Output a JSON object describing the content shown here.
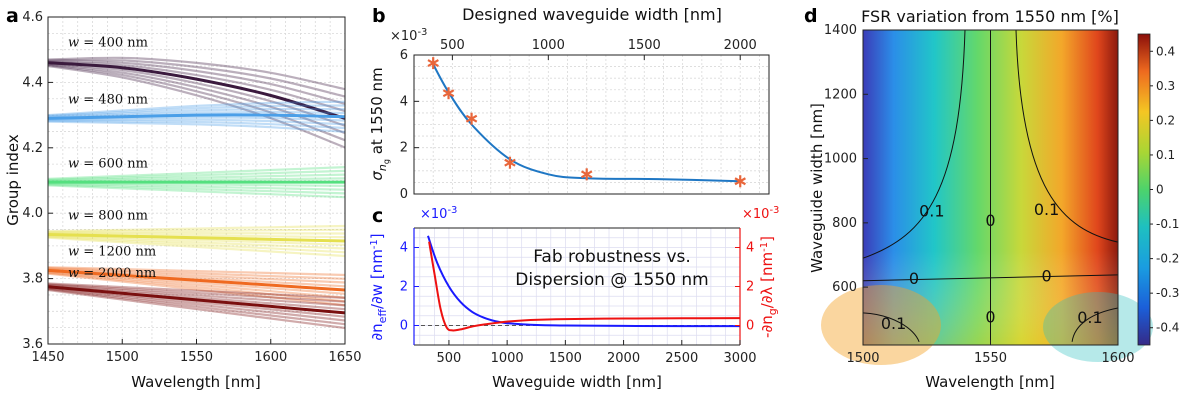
{
  "chart_data": [
    {
      "panel": "a",
      "type": "line",
      "title": "",
      "xlabel": "Wavelength [nm]",
      "ylabel": "Group index",
      "xlim": [
        1450,
        1650
      ],
      "ylim": [
        3.6,
        4.6
      ],
      "xticks": [
        "1450",
        "1500",
        "1550",
        "1600",
        "1650"
      ],
      "yticks": [
        "3.6",
        "3.8",
        "4.0",
        "4.2",
        "4.4",
        "4.6"
      ],
      "grid": true,
      "series": [
        {
          "name": "w = 400 nm",
          "color": "#3b1a3e",
          "x": [
            1450,
            1500,
            1550,
            1600,
            1650
          ],
          "y": [
            4.46,
            4.445,
            4.41,
            4.36,
            4.29
          ]
        },
        {
          "name": "w = 480 nm",
          "color": "#4b9fe8",
          "x": [
            1450,
            1500,
            1550,
            1600,
            1650
          ],
          "y": [
            4.29,
            4.295,
            4.3,
            4.3,
            4.295
          ]
        },
        {
          "name": "w = 600 nm",
          "color": "#54e07f",
          "x": [
            1450,
            1500,
            1550,
            1600,
            1650
          ],
          "y": [
            4.095,
            4.095,
            4.095,
            4.095,
            4.095
          ]
        },
        {
          "name": "w = 800 nm",
          "color": "#e5e04f",
          "x": [
            1450,
            1500,
            1550,
            1600,
            1650
          ],
          "y": [
            3.935,
            3.93,
            3.925,
            3.92,
            3.915
          ]
        },
        {
          "name": "w = 1200 nm",
          "color": "#ef6a21",
          "x": [
            1450,
            1500,
            1550,
            1600,
            1650
          ],
          "y": [
            3.825,
            3.81,
            3.795,
            3.78,
            3.765
          ]
        },
        {
          "name": "w = 2000 nm",
          "color": "#7a0f0f",
          "x": [
            1450,
            1500,
            1550,
            1600,
            1650
          ],
          "y": [
            3.775,
            3.755,
            3.735,
            3.715,
            3.695
          ]
        }
      ]
    },
    {
      "panel": "b",
      "type": "scatter",
      "title": "Designed waveguide width [nm]",
      "xlabel": "",
      "ylabel": "σ_ng at 1550 nm",
      "ylabel_main": "σ",
      "ylabel_sub": "n",
      "ylabel_subsub": "g",
      "ylabel_rest": " at 1550 nm",
      "multiplier": "×10",
      "multiplier_exp": "-3",
      "xlim": [
        300,
        2150
      ],
      "ylim": [
        0,
        6
      ],
      "xticks": [
        "500",
        "1000",
        "1500",
        "2000"
      ],
      "yticks": [
        "0",
        "2",
        "4",
        "6"
      ],
      "grid": true,
      "points": {
        "x": [
          400,
          480,
          600,
          800,
          1200,
          2000
        ],
        "y": [
          5.65,
          4.35,
          3.25,
          1.35,
          0.85,
          0.55
        ]
      },
      "fit": {
        "x": [
          400,
          480,
          600,
          800,
          1000,
          1200,
          1600,
          2000
        ],
        "y": [
          5.6,
          4.4,
          3.0,
          1.5,
          0.85,
          0.68,
          0.64,
          0.55
        ]
      }
    },
    {
      "panel": "c",
      "type": "line",
      "title": "",
      "xlabel": "Waveguide width [nm]",
      "ylabel_left": "∂n_eff/∂w [nm^-1]",
      "ylabel_left_main": "∂n",
      "ylabel_left_sub": "eff",
      "ylabel_left_rest": "/∂w [nm",
      "ylabel_left_sup": "-1",
      "ylabel_left_end": "]",
      "ylabel_right": "-∂n_g/∂λ [nm^-1]",
      "ylabel_right_main": "-∂n",
      "ylabel_right_sub": "g",
      "ylabel_right_rest": "/∂λ [nm",
      "ylabel_right_sup": "-1",
      "ylabel_right_end": "]",
      "multiplier": "×10",
      "multiplier_exp": "-3",
      "xlim": [
        200,
        3000
      ],
      "ylim_left": [
        -1,
        5
      ],
      "ylim_right": [
        -1,
        5
      ],
      "xticks": [
        "500",
        "1000",
        "1500",
        "2000",
        "2500",
        "3000"
      ],
      "yticks_left": [
        "0",
        "2",
        "4"
      ],
      "yticks_right": [
        "0",
        "2",
        "4"
      ],
      "annotation": [
        "Fab robustness vs.",
        "Dispersion @ 1550 nm"
      ],
      "grid": true,
      "series": [
        {
          "axis": "left",
          "color": "#1a1aff",
          "x": [
            320,
            400,
            500,
            600,
            700,
            800,
            900,
            1000,
            1200,
            1500,
            2000,
            2500,
            3000
          ],
          "y": [
            4.6,
            3.2,
            2.0,
            1.2,
            0.7,
            0.4,
            0.22,
            0.12,
            0.04,
            0.0,
            -0.02,
            -0.03,
            -0.03
          ]
        },
        {
          "axis": "right",
          "color": "#ee1111",
          "x": [
            330,
            380,
            430,
            480,
            530,
            600,
            700,
            800,
            1000,
            1200,
            1500,
            2000,
            2500,
            3000
          ],
          "y": [
            4.3,
            2.5,
            0.8,
            -0.1,
            -0.25,
            -0.2,
            -0.05,
            0.05,
            0.2,
            0.28,
            0.33,
            0.36,
            0.37,
            0.38
          ]
        }
      ]
    },
    {
      "panel": "d",
      "type": "heatmap",
      "title": "FSR variation from 1550 nm [%]",
      "xlabel": "Wavelength [nm]",
      "ylabel": "Waveguide width [nm]",
      "xlim": [
        1500,
        1600
      ],
      "ylim": [
        420,
        1400
      ],
      "xticks": [
        "1500",
        "1550",
        "1600"
      ],
      "yticks": [
        "600",
        "800",
        "1000",
        "1200",
        "1400"
      ],
      "colorbar_ticks": [
        "0.4",
        "0.3",
        "0.2",
        "0.1",
        "0",
        "-0.1",
        "-0.2",
        "-0.3",
        "-0.4"
      ],
      "colorbar_range": [
        -0.45,
        0.45
      ],
      "contour_labels": [
        "0.1",
        "0.1",
        "0",
        "0",
        "0",
        "0",
        "0.1",
        "0.1"
      ]
    }
  ],
  "panel_labels": [
    "a",
    "b",
    "c",
    "d"
  ],
  "colors": {
    "grid": "#d9d9d9",
    "fit": "#1f77c4",
    "star": "#e8663b",
    "axis": "#222222"
  }
}
